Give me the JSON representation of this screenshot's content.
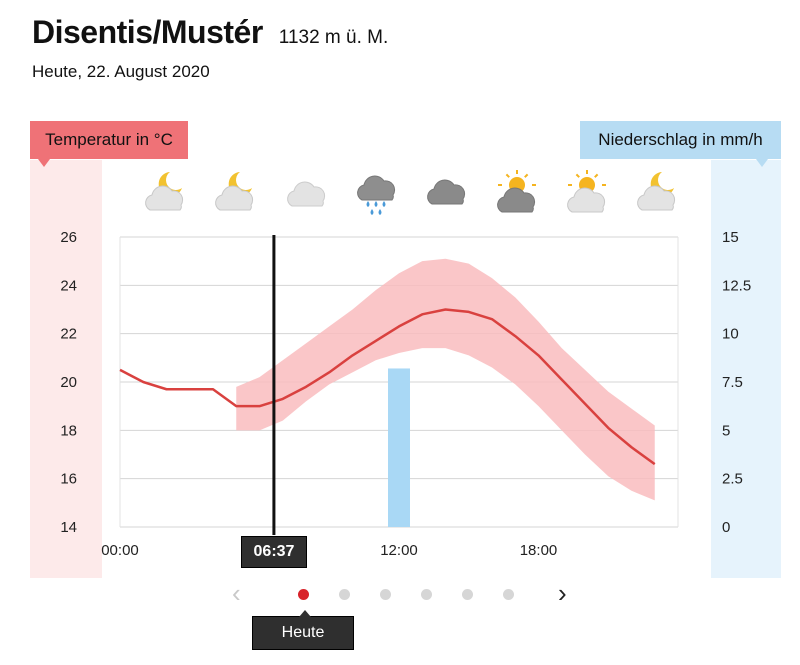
{
  "header": {
    "station": "Disentis/Mustér",
    "elevation": "1132 m ü. M.",
    "date": "Heute, 22. August 2020"
  },
  "labels": {
    "temperature": "Temperatur in °C",
    "precipitation": "Niederschlag in mm/h"
  },
  "weather_icons": [
    "moon-cloud-icon",
    "moon-cloud-icon",
    "cloud-icon",
    "rain-cloud-icon",
    "dark-cloud-icon",
    "sun-dark-cloud-icon",
    "sun-cloud-icon",
    "moon-cloud-icon"
  ],
  "current_time": "06:37",
  "pager": {
    "day_label": "Heute",
    "dot_count": 6,
    "active_index": 0
  },
  "colors": {
    "temperature": "#d9413f",
    "temperature_band": "#f9bcbe",
    "precipitation": "#a9d8f5",
    "accent": "#d8232a"
  },
  "chart_data": {
    "type": "line",
    "x_tick_labels": [
      "00:00",
      "12:00",
      "18:00"
    ],
    "y_left": {
      "label": "Temperatur in °C",
      "ticks": [
        "26",
        "24",
        "22",
        "20",
        "18",
        "16",
        "14"
      ],
      "ylim": [
        14,
        26
      ]
    },
    "y_right": {
      "label": "Niederschlag in mm/h",
      "ticks": [
        "15",
        "12.5",
        "10",
        "7.5",
        "5",
        "2.5",
        "0"
      ],
      "ylim": [
        0,
        15
      ]
    },
    "xlim": [
      0,
      24
    ],
    "temperature": {
      "x": [
        0,
        1,
        2,
        3,
        4,
        5,
        6,
        7,
        8,
        9,
        10,
        11,
        12,
        13,
        14,
        15,
        16,
        17,
        18,
        19,
        20,
        21,
        22,
        23
      ],
      "y": [
        20.5,
        20.0,
        19.7,
        19.7,
        19.7,
        19.0,
        19.0,
        19.3,
        19.8,
        20.4,
        21.1,
        21.7,
        22.3,
        22.8,
        23.0,
        22.9,
        22.6,
        21.9,
        21.1,
        20.1,
        19.1,
        18.1,
        17.3,
        16.6
      ]
    },
    "temperature_band": {
      "x": [
        5,
        6,
        7,
        8,
        9,
        10,
        11,
        12,
        13,
        14,
        15,
        16,
        17,
        18,
        19,
        20,
        21,
        22,
        23
      ],
      "lower": [
        18.0,
        18.0,
        18.4,
        19.2,
        19.9,
        20.4,
        20.9,
        21.2,
        21.4,
        21.4,
        21.1,
        20.6,
        19.9,
        19.0,
        18.0,
        17.0,
        16.1,
        15.5,
        15.1
      ],
      "upper": [
        19.8,
        20.2,
        20.9,
        21.6,
        22.3,
        23.0,
        23.8,
        24.5,
        25.0,
        25.1,
        24.9,
        24.3,
        23.5,
        22.5,
        21.4,
        20.5,
        19.6,
        18.9,
        18.2
      ]
    },
    "precipitation": {
      "x": [
        12
      ],
      "values": [
        8.2
      ]
    },
    "now_hour": 6.62
  }
}
